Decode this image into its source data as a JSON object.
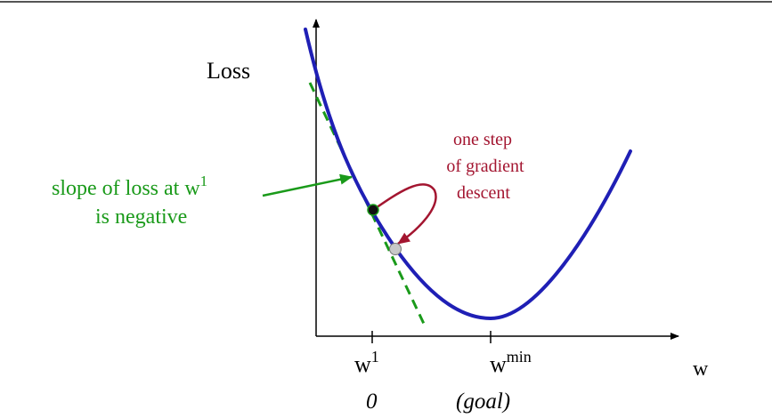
{
  "figure": {
    "y_axis_label": "Loss",
    "x_axis_label": "w",
    "tick_labels": {
      "w1_base": "w",
      "w1_sup": "1",
      "wmin_base": "w",
      "wmin_sup": "min"
    },
    "sub_labels": {
      "w1_value": "0",
      "wmin_value": "(goal)"
    },
    "slope_annotation": {
      "line1_prefix": "slope of loss at w",
      "line1_sup": "1",
      "line2": "is negative",
      "color": "#1a9a1a"
    },
    "step_annotation": {
      "line1": "one step",
      "line2": "of gradient",
      "line3": "descent",
      "color": "#a31530"
    },
    "colors": {
      "curve": "#1f1fb5",
      "tangent": "#1a9a1a",
      "axes": "#000000",
      "start_point": "#111111",
      "next_point": "#c8c8c8",
      "top_border": "#555555"
    }
  }
}
